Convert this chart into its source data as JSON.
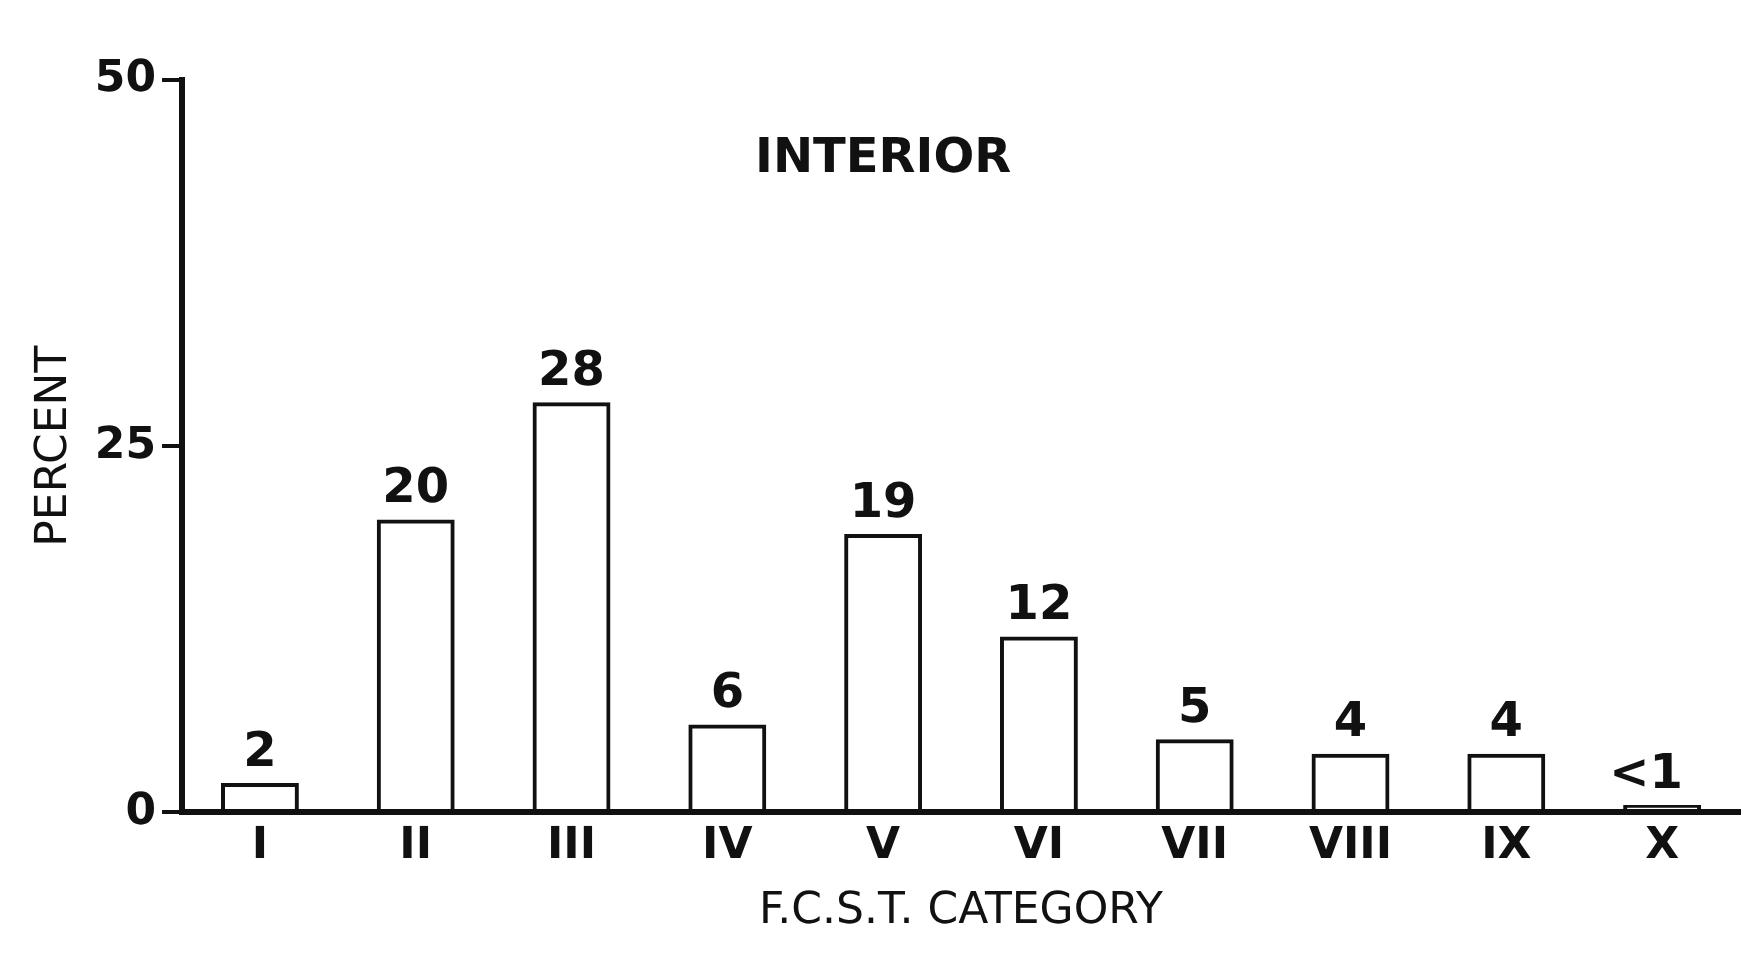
{
  "chart_data": {
    "type": "bar",
    "title": "INTERIOR",
    "xlabel": "F.C.S.T. CATEGORY",
    "ylabel": "PERCENT",
    "categories": [
      "I",
      "II",
      "III",
      "IV",
      "V",
      "VI",
      "VII",
      "VIII",
      "IX",
      "X"
    ],
    "values": [
      2,
      20,
      28,
      6,
      19,
      12,
      5,
      4,
      4,
      0.5
    ],
    "value_labels": [
      "2",
      "20",
      "28",
      "6",
      "19",
      "12",
      "5",
      "4",
      "4",
      "<1"
    ],
    "color": "#111111",
    "ylim": [
      0,
      50
    ],
    "yticks": [
      0,
      25,
      50
    ],
    "grid": false,
    "legend": false
  }
}
